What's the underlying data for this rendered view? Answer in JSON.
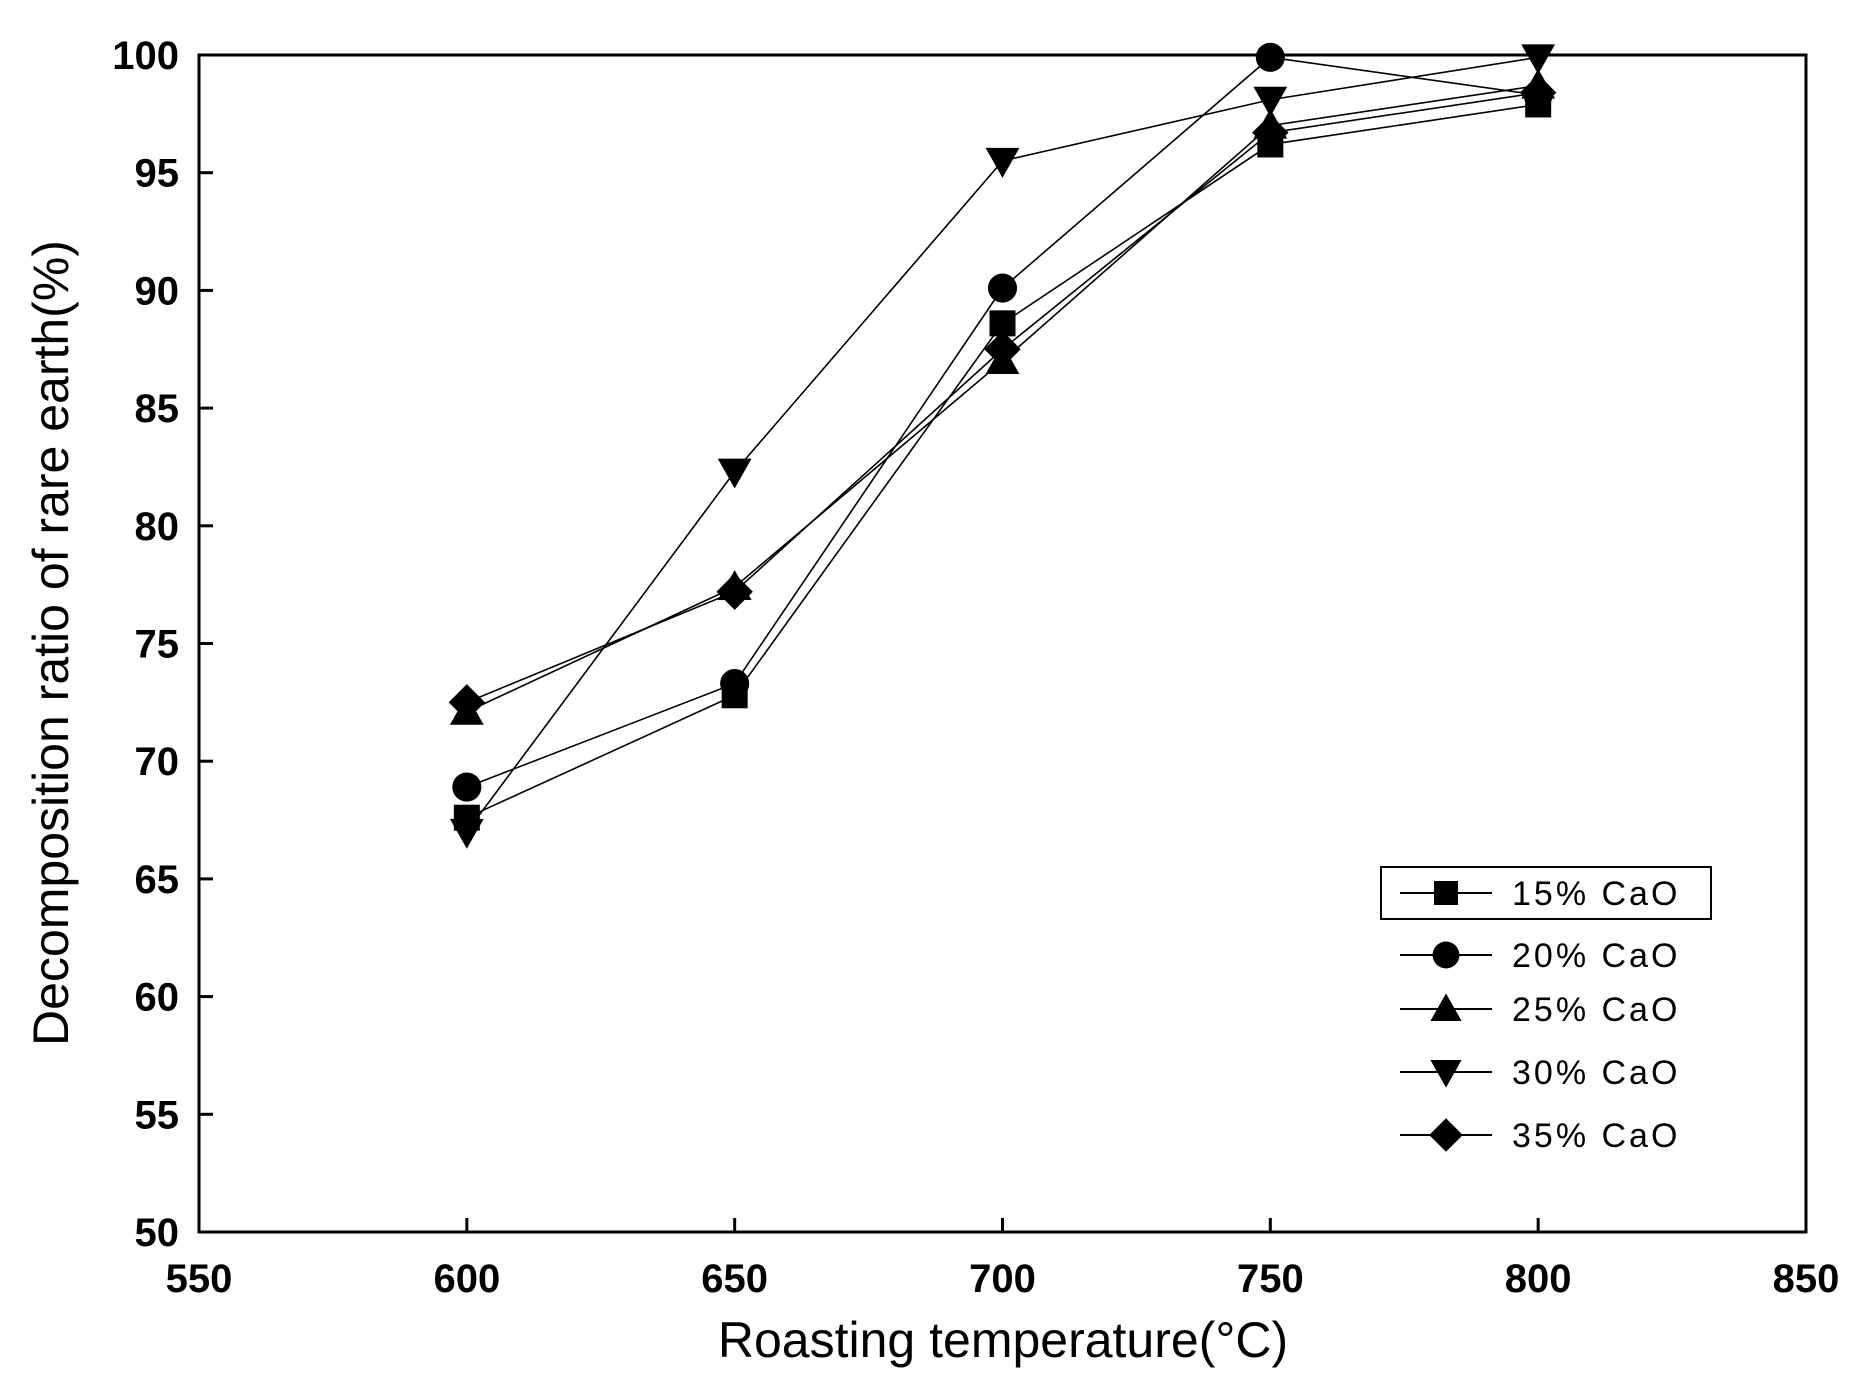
{
  "chart_data": {
    "type": "line",
    "title": "",
    "xlabel": "Roasting temperature(°C)",
    "ylabel": "Decomposition ratio of rare earth(%)",
    "xlim": [
      550,
      850
    ],
    "ylim": [
      50,
      100
    ],
    "xticks": [
      550,
      600,
      650,
      700,
      750,
      800,
      850
    ],
    "yticks": [
      50,
      55,
      60,
      65,
      70,
      75,
      80,
      85,
      90,
      95,
      100
    ],
    "grid": false,
    "legend_position": "bottom-right",
    "x": [
      600,
      650,
      700,
      750,
      800
    ],
    "series": [
      {
        "name": "15% CaO",
        "marker": "square",
        "values": [
          67.6,
          72.8,
          88.6,
          96.2,
          97.9
        ]
      },
      {
        "name": "20% CaO",
        "marker": "circle",
        "values": [
          68.9,
          73.3,
          90.1,
          99.9,
          98.3
        ]
      },
      {
        "name": "25% CaO",
        "marker": "triangle-up",
        "values": [
          72.1,
          77.4,
          87.0,
          97.0,
          98.7
        ]
      },
      {
        "name": "30% CaO",
        "marker": "triangle-down",
        "values": [
          67.0,
          82.3,
          95.5,
          98.1,
          99.9
        ]
      },
      {
        "name": "35% CaO",
        "marker": "diamond",
        "values": [
          72.5,
          77.2,
          87.5,
          96.7,
          98.4
        ]
      }
    ]
  }
}
